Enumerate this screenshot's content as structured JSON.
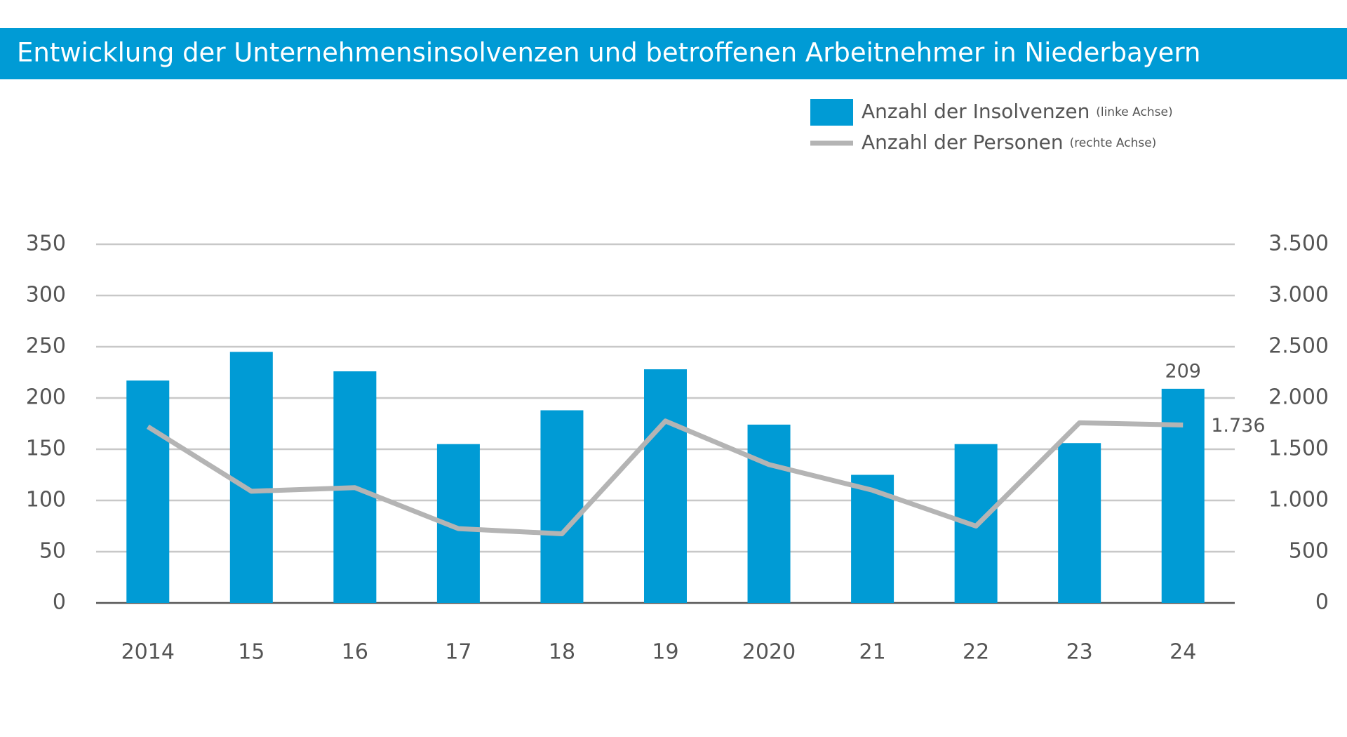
{
  "chart_data": {
    "type": "bar_line",
    "title": "Entwicklung der Unternehmensinsolvenzen und betroffenen Arbeitnehmer in Niederbayern",
    "categories": [
      "2014",
      "15",
      "16",
      "17",
      "18",
      "19",
      "2020",
      "21",
      "22",
      "23",
      "24"
    ],
    "series": [
      {
        "name": "Anzahl der Insolvenzen",
        "axis_note": "(linke Achse)",
        "type": "bar",
        "axis": "y",
        "color": "#009bd5",
        "values": [
          217,
          245,
          226,
          155,
          188,
          228,
          174,
          125,
          155,
          156,
          209
        ],
        "value_labels": [
          null,
          null,
          null,
          null,
          null,
          null,
          null,
          null,
          null,
          null,
          "209"
        ]
      },
      {
        "name": "Anzahl der Personen",
        "axis_note": "(rechte Achse)",
        "type": "line",
        "axis": "y2",
        "color": "#b4b4b4",
        "values": [
          1720,
          1090,
          1125,
          725,
          675,
          1775,
          1350,
          1100,
          750,
          1758,
          1736
        ],
        "value_labels": [
          null,
          null,
          null,
          null,
          null,
          null,
          null,
          null,
          null,
          null,
          "1.736"
        ]
      }
    ],
    "ylim": [
      0,
      350
    ],
    "yticks": [
      0,
      50,
      100,
      150,
      200,
      250,
      300,
      350
    ],
    "y2lim": [
      0,
      3500
    ],
    "y2ticks": [
      0,
      500,
      {
        "value": 1000,
        "label": "1.000"
      },
      {
        "value": 1500,
        "label": "1.500"
      },
      {
        "value": 2000,
        "label": "2.000"
      },
      {
        "value": 2500,
        "label": "2.500"
      },
      {
        "value": 3000,
        "label": "3.000"
      },
      {
        "value": 3500,
        "label": "3.500"
      }
    ],
    "grid": true,
    "legend": "top-right"
  }
}
